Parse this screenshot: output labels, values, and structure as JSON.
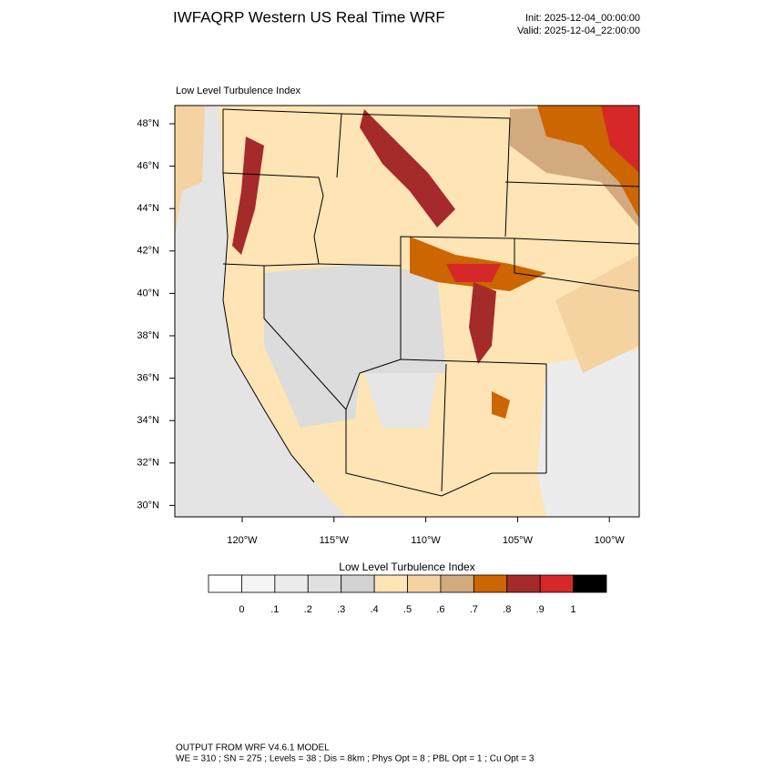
{
  "header": {
    "title": "IWFAQRP Western US Real Time WRF",
    "init": "Init: 2025-12-04_00:00:00",
    "valid": "Valid: 2025-12-04_22:00:00"
  },
  "map": {
    "title": "Low Level Turbulence Index",
    "lat_labels": [
      "48°N",
      "46°N",
      "44°N",
      "42°N",
      "40°N",
      "38°N",
      "36°N",
      "34°N",
      "32°N",
      "30°N"
    ],
    "lon_labels": [
      "120°W",
      "115°W",
      "110°W",
      "105°W",
      "100°W"
    ]
  },
  "colorbar": {
    "title": "Low Level Turbulence Index",
    "labels": [
      "0",
      ".1",
      ".2",
      ".3",
      ".4",
      ".5",
      ".6",
      ".7",
      ".8",
      ".9",
      "1"
    ],
    "colors": [
      "#ffffff",
      "#f5f5f5",
      "#ececec",
      "#e0e0e0",
      "#d2d2d2",
      "#ffe4b5",
      "#f5d3a0",
      "#d2aa7d",
      "#cc6600",
      "#a52a2a",
      "#d62828",
      "#000000"
    ]
  },
  "footer": {
    "line1": "OUTPUT FROM WRF V4.6.1 MODEL",
    "line2": "WE = 310 ; SN = 275 ; Levels = 38 ; Dis = 8km ; Phys Opt = 8 ; PBL Opt = 1 ; Cu Opt = 3"
  }
}
